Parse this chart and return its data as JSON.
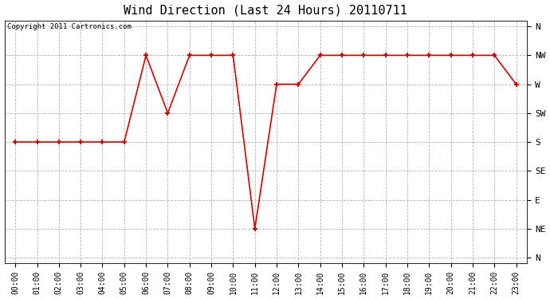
{
  "title": "Wind Direction (Last 24 Hours) 20110711",
  "copyright_text": "Copyright 2011 Cartronics.com",
  "background_color": "#ffffff",
  "line_color": "#cc0000",
  "grid_color": "#aaaaaa",
  "x_labels": [
    "00:00",
    "01:00",
    "02:00",
    "03:00",
    "04:00",
    "05:00",
    "06:00",
    "07:00",
    "08:00",
    "09:00",
    "10:00",
    "11:00",
    "12:00",
    "13:00",
    "14:00",
    "15:00",
    "16:00",
    "17:00",
    "18:00",
    "19:00",
    "20:00",
    "21:00",
    "22:00",
    "23:00"
  ],
  "y_ticks": [
    8,
    7,
    6,
    5,
    4,
    3,
    2,
    1,
    0
  ],
  "y_labels": [
    "N",
    "NW",
    "W",
    "SW",
    "S",
    "SE",
    "E",
    "NE",
    "N"
  ],
  "data_points": [
    [
      0,
      4
    ],
    [
      1,
      4
    ],
    [
      2,
      4
    ],
    [
      3,
      4
    ],
    [
      4,
      4
    ],
    [
      5,
      4
    ],
    [
      6,
      7
    ],
    [
      7,
      5
    ],
    [
      8,
      7
    ],
    [
      9,
      7
    ],
    [
      10,
      7
    ],
    [
      11,
      1
    ],
    [
      12,
      6
    ],
    [
      13,
      6
    ],
    [
      14,
      7
    ],
    [
      15,
      7
    ],
    [
      16,
      7
    ],
    [
      17,
      7
    ],
    [
      18,
      7
    ],
    [
      19,
      7
    ],
    [
      20,
      7
    ],
    [
      21,
      7
    ],
    [
      22,
      7
    ],
    [
      23,
      6
    ]
  ],
  "figwidth": 6.9,
  "figheight": 3.75,
  "dpi": 100
}
